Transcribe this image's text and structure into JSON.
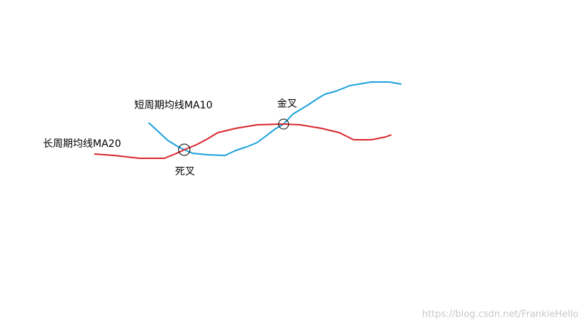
{
  "labels": {
    "short_ma": "短周期均线MA10",
    "long_ma": "长周期均线MA20",
    "death_cross": "死叉",
    "golden_cross": "金叉"
  },
  "watermark": "https://blog.csdn.net/FrankieHello"
}
